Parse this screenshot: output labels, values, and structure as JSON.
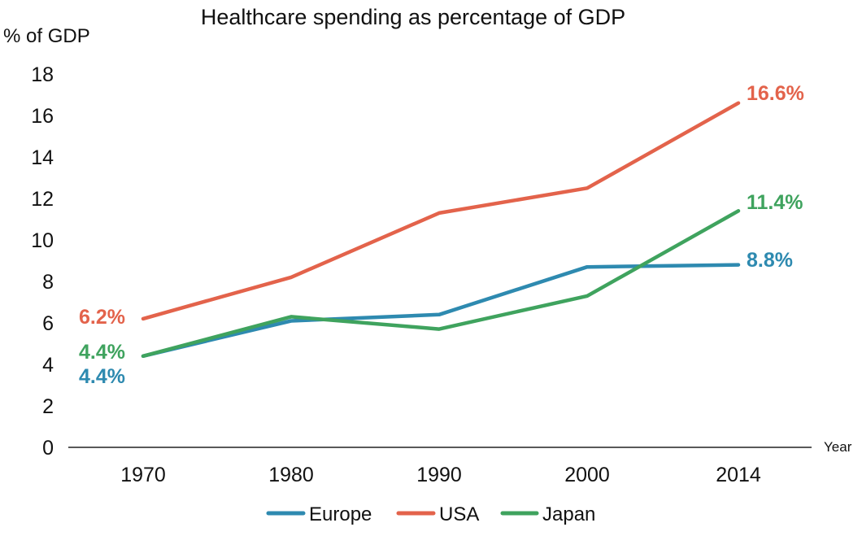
{
  "chart_data": {
    "type": "line",
    "title": "Healthcare spending as percentage of GDP",
    "ylabel": "% of GDP",
    "xlabel": "Year",
    "categories": [
      "1970",
      "1980",
      "1990",
      "2000",
      "2014"
    ],
    "ylim": [
      0,
      18
    ],
    "yticks": [
      "0",
      "2",
      "4",
      "6",
      "8",
      "10",
      "12",
      "14",
      "16",
      "18"
    ],
    "grid": false,
    "legend_position": "bottom",
    "series": [
      {
        "name": "Europe",
        "color": "#2e8ab0",
        "values": [
          4.4,
          6.1,
          6.4,
          8.7,
          8.8
        ]
      },
      {
        "name": "USA",
        "color": "#e3634b",
        "values": [
          6.2,
          8.2,
          11.3,
          12.5,
          16.6
        ]
      },
      {
        "name": "Japan",
        "color": "#3fa35e",
        "values": [
          4.4,
          6.3,
          5.7,
          7.3,
          11.4
        ]
      }
    ],
    "annotations": [
      {
        "text": "6.2%",
        "series": "USA",
        "index": 0
      },
      {
        "text": "4.4%",
        "series": "Japan",
        "index": 0
      },
      {
        "text": "4.4%",
        "series": "Europe",
        "index": 0
      },
      {
        "text": "16.6%",
        "series": "USA",
        "index": 4
      },
      {
        "text": "11.4%",
        "series": "Japan",
        "index": 4
      },
      {
        "text": "8.8%",
        "series": "Europe",
        "index": 4
      }
    ]
  }
}
